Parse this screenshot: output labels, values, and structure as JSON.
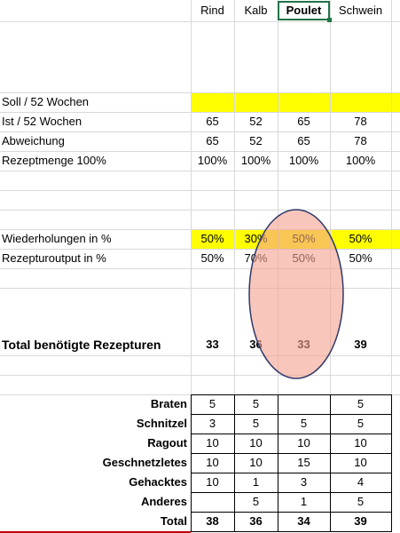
{
  "header": {
    "columns": [
      "Rind",
      "Kalb",
      "Poulet",
      "Schwein"
    ]
  },
  "summary": {
    "rows": [
      {
        "label": "Soll / 52 Wochen"
      },
      {
        "label": "Ist / 52 Wochen",
        "cells": [
          65,
          52,
          65,
          78
        ]
      },
      {
        "label": "Abweichung",
        "cells": [
          65,
          52,
          65,
          78
        ]
      },
      {
        "label": "Rezeptmenge 100%",
        "cells": [
          "100%",
          "100%",
          "100%",
          "100%"
        ]
      },
      {
        "label": "Wiederholungen in %",
        "cells": [
          "50%",
          "30%",
          "50%",
          "50%"
        ]
      },
      {
        "label": "Rezepturoutput in %",
        "cells": [
          "50%",
          "70%",
          "50%",
          "50%"
        ]
      },
      {
        "label": "Total benötigte Rezepturen",
        "cells": [
          33,
          36,
          33,
          39
        ]
      }
    ]
  },
  "table": {
    "rows": [
      {
        "label": "Braten",
        "cells": [
          5,
          5,
          null,
          5
        ]
      },
      {
        "label": "Schnitzel",
        "cells": [
          3,
          5,
          5,
          5
        ]
      },
      {
        "label": "Ragout",
        "cells": [
          10,
          10,
          10,
          10
        ]
      },
      {
        "label": "Geschnetzletes",
        "cells": [
          10,
          10,
          15,
          10
        ]
      },
      {
        "label": "Gehacktes",
        "cells": [
          10,
          1,
          3,
          4
        ]
      },
      {
        "label": "Anderes",
        "cells": [
          null,
          5,
          1,
          5
        ]
      },
      {
        "label": "Total",
        "cells": [
          38,
          36,
          34,
          39
        ]
      }
    ]
  }
}
